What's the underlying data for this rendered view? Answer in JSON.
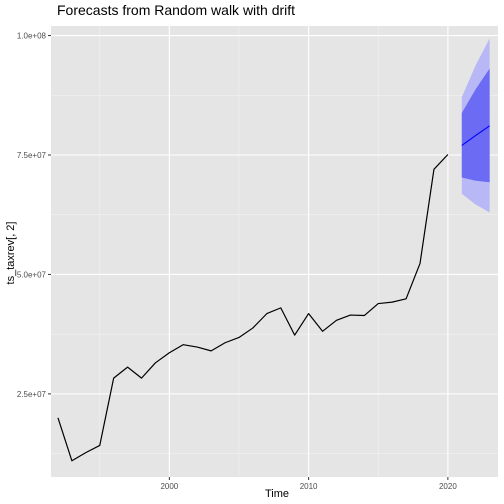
{
  "chart_data": {
    "type": "line",
    "title": "Forecasts from Random walk with drift",
    "xlabel": "Time",
    "ylabel": "ts_taxrev[, 2]",
    "xlim": [
      1991.5,
      2023.6
    ],
    "ylim": [
      7600000,
      102000000
    ],
    "grid": true,
    "x_ticks": [
      2000,
      2010,
      2020
    ],
    "x_tick_labels": [
      "2000",
      "2010",
      "2020"
    ],
    "y_ticks": [
      25000000,
      50000000,
      75000000,
      100000000
    ],
    "y_tick_labels": [
      "2.5e+07",
      "5.0e+07",
      "7.5e+07",
      "1.0e+08"
    ],
    "colors": {
      "panel_bg": "#e5e5e5",
      "grid_major": "#ffffff",
      "grid_minor": "#f2f2f2",
      "series": "#000000",
      "forecast_line": "#0000ff",
      "band_80": "#6b6bf4",
      "band_95": "#b8b8f6"
    },
    "series": [
      {
        "x": [
          1992,
          1993,
          1994,
          1995,
          1996,
          1997,
          1998,
          1999,
          2000,
          2001,
          2002,
          2003,
          2004,
          2005,
          2006,
          2007,
          2008,
          2009,
          2010,
          2011,
          2012,
          2013,
          2014,
          2015,
          2016,
          2017,
          2018,
          2019,
          2020
        ],
        "values": [
          20000000,
          11000000,
          12700000,
          14200000,
          28300000,
          30600000,
          28300000,
          31500000,
          33600000,
          35300000,
          34800000,
          34000000,
          35700000,
          36800000,
          38800000,
          41800000,
          43000000,
          37300000,
          41800000,
          38100000,
          40400000,
          41500000,
          41400000,
          43900000,
          44200000,
          44900000,
          52300000,
          72000000,
          75100000
        ]
      }
    ],
    "forecast": {
      "x": [
        2021,
        2022,
        2023
      ],
      "mean": [
        77000000,
        79100000,
        81100000
      ],
      "lo80": [
        70300000,
        69600000,
        69300000
      ],
      "hi80": [
        83800000,
        88800000,
        93100000
      ],
      "lo95": [
        66900000,
        64600000,
        63000000
      ],
      "hi95": [
        87100000,
        93800000,
        99400000
      ]
    }
  }
}
